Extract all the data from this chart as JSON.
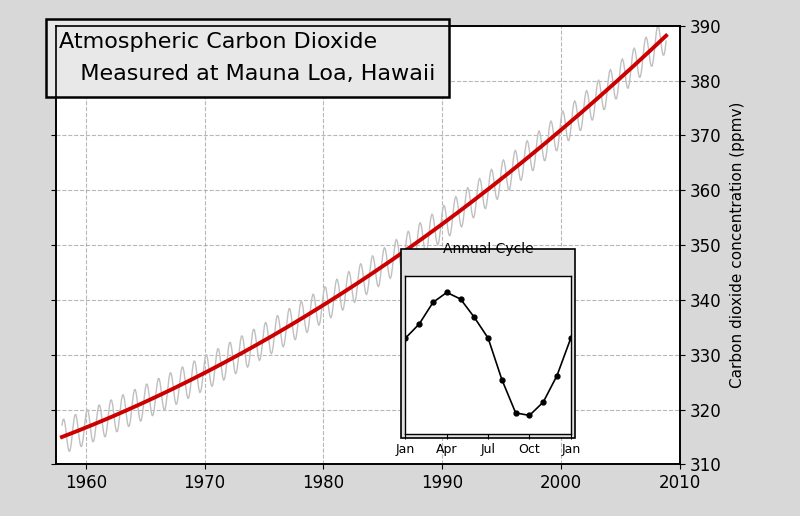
{
  "title_line1": "Atmospheric Carbon Dioxide",
  "title_line2": "Measured at Mauna Loa, Hawaii",
  "ylabel_right": "Carbon dioxide concentration (ppmv)",
  "xlim": [
    1957.5,
    2010
  ],
  "ylim": [
    310,
    390
  ],
  "yticks": [
    310,
    320,
    330,
    340,
    350,
    360,
    370,
    380,
    390
  ],
  "xticks": [
    1960,
    1970,
    1980,
    1990,
    2000,
    2010
  ],
  "background_color": "#d8d8d8",
  "plot_bg_color": "#ffffff",
  "grid_color": "#999999",
  "raw_color": "#c0c0c0",
  "trend_color": "#cc0000",
  "trend_linewidth": 2.8,
  "raw_linewidth": 1.0,
  "co2_annual_amplitude": 3.2,
  "inset_title": "Annual Cycle",
  "inset_months": [
    "Jan",
    "Apr",
    "Jul",
    "Oct",
    "Jan"
  ],
  "inset_month_positions": [
    0,
    3,
    6,
    9,
    12
  ],
  "inset_values": [
    328.5,
    330.2,
    332.8,
    334.0,
    333.2,
    331.0,
    328.5,
    323.5,
    319.5,
    319.2,
    320.8,
    324.0,
    328.5
  ],
  "inset_bg_color": "#e0e0e0"
}
